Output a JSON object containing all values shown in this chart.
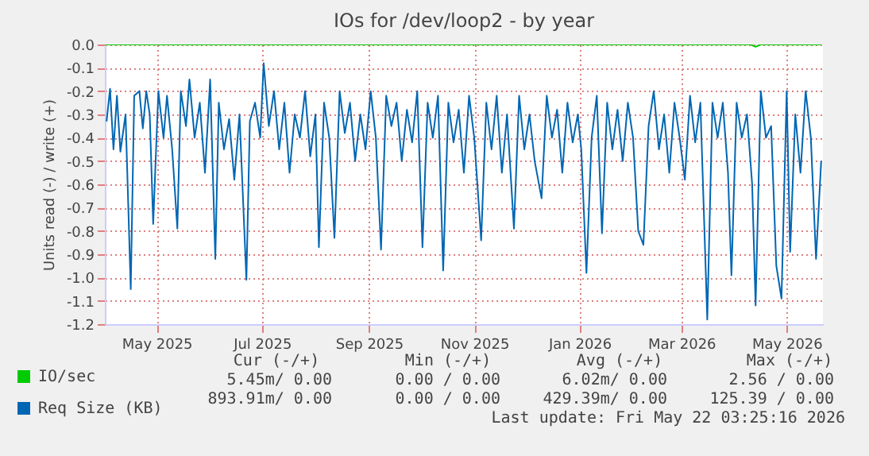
{
  "chart_data": {
    "type": "line",
    "title": "IOs for /dev/loop2 - by year",
    "ylabel": "Units read (-) / write (+)",
    "xlim": [
      "2025-04-01",
      "2026-05-22"
    ],
    "xticks": [
      {
        "value": "2025-05-01",
        "label": "May 2025"
      },
      {
        "value": "2025-07-01",
        "label": "Jul 2025"
      },
      {
        "value": "2025-09-01",
        "label": "Sep 2025"
      },
      {
        "value": "2025-11-01",
        "label": "Nov 2025"
      },
      {
        "value": "2026-01-01",
        "label": "Jan 2026"
      },
      {
        "value": "2026-03-01",
        "label": "Mar 2026"
      },
      {
        "value": "2026-05-01",
        "label": "May 2026"
      }
    ],
    "ylim": [
      -1.2,
      0
    ],
    "yticks": [
      {
        "value": 0,
        "label": "0.0"
      },
      -0.1,
      -0.2,
      -0.3,
      -0.4,
      -0.5,
      -0.6,
      -0.7,
      -0.8,
      -0.9,
      {
        "value": -1,
        "label": "-1.0"
      },
      -1.1,
      -1.2
    ],
    "grid": true,
    "legend": "bottom left",
    "series": [
      {
        "name": "IO/sec",
        "color": "#00cc00",
        "x": [
          "2025-04-01",
          "2026-04-10",
          "2026-04-13",
          "2026-04-16",
          "2026-05-21"
        ],
        "values": [
          0,
          0,
          -0.01,
          0,
          0
        ]
      },
      {
        "name": "Req Size (KB)",
        "color": "#0066b3",
        "x": [
          "2025-04-02",
          "2025-04-04",
          "2025-04-06",
          "2025-04-08",
          "2025-04-10",
          "2025-04-13",
          "2025-04-16",
          "2025-04-18",
          "2025-04-21",
          "2025-04-23",
          "2025-04-25",
          "2025-04-27",
          "2025-04-29",
          "2025-05-02",
          "2025-05-05",
          "2025-05-07",
          "2025-05-10",
          "2025-05-13",
          "2025-05-15",
          "2025-05-18",
          "2025-05-20",
          "2025-05-23",
          "2025-05-26",
          "2025-05-29",
          "2025-06-01",
          "2025-06-04",
          "2025-06-06",
          "2025-06-09",
          "2025-06-12",
          "2025-06-15",
          "2025-06-18",
          "2025-06-22",
          "2025-06-24",
          "2025-06-27",
          "2025-06-30",
          "2025-07-02",
          "2025-07-05",
          "2025-07-08",
          "2025-07-11",
          "2025-07-14",
          "2025-07-17",
          "2025-07-20",
          "2025-07-23",
          "2025-07-26",
          "2025-07-29",
          "2025-08-01",
          "2025-08-03",
          "2025-08-06",
          "2025-08-09",
          "2025-08-12",
          "2025-08-15",
          "2025-08-18",
          "2025-08-21",
          "2025-08-24",
          "2025-08-27",
          "2025-08-30",
          "2025-09-02",
          "2025-09-05",
          "2025-09-08",
          "2025-09-11",
          "2025-09-14",
          "2025-09-17",
          "2025-09-20",
          "2025-09-23",
          "2025-09-26",
          "2025-09-29",
          "2025-10-02",
          "2025-10-05",
          "2025-10-08",
          "2025-10-11",
          "2025-10-14",
          "2025-10-17",
          "2025-10-20",
          "2025-10-23",
          "2025-10-26",
          "2025-10-29",
          "2025-11-01",
          "2025-11-05",
          "2025-11-08",
          "2025-11-11",
          "2025-11-14",
          "2025-11-17",
          "2025-11-20",
          "2025-11-24",
          "2025-11-27",
          "2025-11-30",
          "2025-12-03",
          "2025-12-06",
          "2025-12-10",
          "2025-12-13",
          "2025-12-16",
          "2025-12-19",
          "2025-12-22",
          "2025-12-25",
          "2025-12-28",
          "2025-12-31",
          "2026-01-02",
          "2026-01-05",
          "2026-01-08",
          "2026-01-11",
          "2026-01-14",
          "2026-01-17",
          "2026-01-20",
          "2026-01-23",
          "2026-01-26",
          "2026-01-29",
          "2026-02-01",
          "2026-02-04",
          "2026-02-07",
          "2026-02-10",
          "2026-02-13",
          "2026-02-16",
          "2026-02-19",
          "2026-02-22",
          "2026-02-25",
          "2026-02-28",
          "2026-03-03",
          "2026-03-06",
          "2026-03-09",
          "2026-03-12",
          "2026-03-16",
          "2026-03-19",
          "2026-03-22",
          "2026-03-25",
          "2026-03-28",
          "2026-03-30",
          "2026-04-02",
          "2026-04-05",
          "2026-04-08",
          "2026-04-11",
          "2026-04-13",
          "2026-04-16",
          "2026-04-19",
          "2026-04-22",
          "2026-04-25",
          "2026-04-28",
          "2026-05-01",
          "2026-05-03",
          "2026-05-06",
          "2026-05-09",
          "2026-05-12",
          "2026-05-15",
          "2026-05-18",
          "2026-05-21"
        ],
        "values": [
          -0.33,
          -0.19,
          -0.45,
          -0.22,
          -0.46,
          -0.3,
          -1.05,
          -0.22,
          -0.2,
          -0.36,
          -0.2,
          -0.3,
          -0.77,
          -0.2,
          -0.4,
          -0.22,
          -0.45,
          -0.79,
          -0.2,
          -0.35,
          -0.15,
          -0.4,
          -0.25,
          -0.55,
          -0.15,
          -0.92,
          -0.25,
          -0.45,
          -0.32,
          -0.58,
          -0.3,
          -1.01,
          -0.33,
          -0.25,
          -0.4,
          -0.08,
          -0.35,
          -0.2,
          -0.45,
          -0.25,
          -0.55,
          -0.3,
          -0.4,
          -0.2,
          -0.48,
          -0.3,
          -0.87,
          -0.25,
          -0.4,
          -0.83,
          -0.2,
          -0.38,
          -0.25,
          -0.5,
          -0.3,
          -0.45,
          -0.2,
          -0.4,
          -0.88,
          -0.22,
          -0.35,
          -0.25,
          -0.5,
          -0.28,
          -0.42,
          -0.2,
          -0.87,
          -0.25,
          -0.4,
          -0.22,
          -0.97,
          -0.25,
          -0.42,
          -0.28,
          -0.55,
          -0.22,
          -0.4,
          -0.84,
          -0.25,
          -0.45,
          -0.22,
          -0.55,
          -0.3,
          -0.79,
          -0.22,
          -0.45,
          -0.3,
          -0.5,
          -0.66,
          -0.22,
          -0.4,
          -0.28,
          -0.55,
          -0.25,
          -0.42,
          -0.3,
          -0.45,
          -0.98,
          -0.4,
          -0.22,
          -0.81,
          -0.25,
          -0.45,
          -0.28,
          -0.5,
          -0.25,
          -0.4,
          -0.8,
          -0.86,
          -0.35,
          -0.2,
          -0.45,
          -0.3,
          -0.55,
          -0.25,
          -0.4,
          -0.58,
          -0.22,
          -0.42,
          -0.25,
          -1.18,
          -0.25,
          -0.4,
          -0.25,
          -0.55,
          -0.99,
          -0.25,
          -0.4,
          -0.3,
          -0.6,
          -1.12,
          -0.2,
          -0.4,
          -0.35,
          -0.95,
          -1.09,
          -0.2,
          -0.89,
          -0.3,
          -0.55,
          -0.2,
          -0.4,
          -0.92,
          -0.5
        ]
      }
    ],
    "annotations": [
      "Cur (-/+)",
      "Min (-/+)",
      "Avg (-/+)",
      "Max (-/+)",
      "5.45m/  0.00",
      "0.00 /  0.00",
      "6.02m/  0.00",
      "2.56 /  0.00",
      "893.91m/  0.00",
      "0.00 /  0.00",
      "429.39m/  0.00",
      "125.39 /  0.00",
      "Last update: Fri May 22 03:25:16 2026"
    ]
  }
}
